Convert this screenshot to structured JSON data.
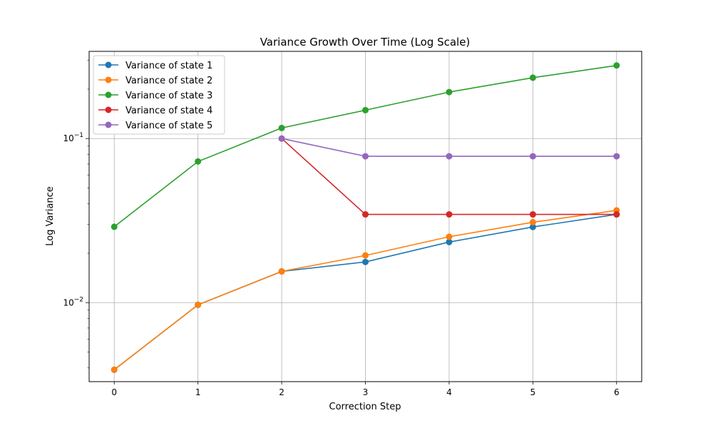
{
  "chart_data": {
    "type": "line",
    "title": "Variance Growth Over Time (Log Scale)",
    "xlabel": "Correction Step",
    "ylabel": "Log Variance",
    "yscale": "log",
    "xlim": [
      -0.3,
      6.3
    ],
    "ylim": [
      0.0033,
      0.34
    ],
    "grid": true,
    "legend_position": "top-left",
    "x": [
      0,
      1,
      2,
      3,
      4,
      5,
      6
    ],
    "x_ticks": [
      "0",
      "1",
      "2",
      "3",
      "4",
      "5",
      "6"
    ],
    "y_major_ticks": [
      {
        "value": 0.01,
        "base": "10",
        "exp": "−2"
      },
      {
        "value": 0.1,
        "base": "10",
        "exp": "−1"
      }
    ],
    "series": [
      {
        "name": "Variance of state 1",
        "color": "#1f77b4",
        "x": [
          0,
          1,
          2,
          3,
          4,
          5,
          6
        ],
        "values": [
          0.0039,
          0.0097,
          0.0155,
          0.0177,
          0.0234,
          0.0289,
          0.0345
        ]
      },
      {
        "name": "Variance of state 2",
        "color": "#ff7f0e",
        "x": [
          0,
          1,
          2,
          3,
          4,
          5,
          6
        ],
        "values": [
          0.0039,
          0.0097,
          0.0155,
          0.0194,
          0.0252,
          0.0309,
          0.0365
        ]
      },
      {
        "name": "Variance of state 3",
        "color": "#2ca02c",
        "x": [
          0,
          1,
          2,
          3,
          4,
          5,
          6
        ],
        "values": [
          0.029,
          0.0725,
          0.116,
          0.149,
          0.192,
          0.235,
          0.279
        ]
      },
      {
        "name": "Variance of state 4",
        "color": "#d62728",
        "x": [
          2,
          3,
          4,
          5,
          6
        ],
        "values": [
          0.1,
          0.0345,
          0.0345,
          0.0345,
          0.0345
        ]
      },
      {
        "name": "Variance of state 5",
        "color": "#9467bd",
        "x": [
          2,
          3,
          4,
          5,
          6
        ],
        "values": [
          0.1,
          0.078,
          0.078,
          0.078,
          0.078
        ]
      }
    ]
  }
}
